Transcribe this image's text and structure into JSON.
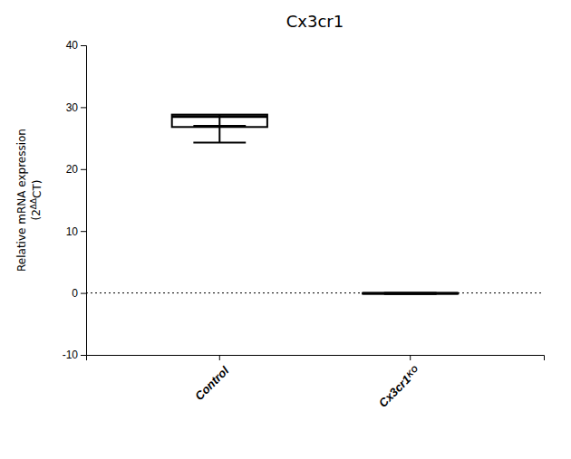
{
  "chart_data": {
    "type": "box",
    "title": "Cx3cr1",
    "y_label": "Relative mRNA expression\n(2ΔΔCT)",
    "categories": [
      "Control",
      "Cx3cr1ᴷᴼ"
    ],
    "whisker_low": [
      24.3,
      -0.18
    ],
    "q1": [
      26.8,
      -0.12
    ],
    "median": [
      28.5,
      -0.05
    ],
    "q3": [
      28.8,
      -0.02
    ],
    "whisker_high": [
      27.0,
      0.02
    ],
    "color": "#000000",
    "reference_lines": [
      {
        "y": 0,
        "line_style": "dotted",
        "color": "#000000"
      }
    ],
    "ylim": [
      -10,
      40
    ],
    "yticks": [
      -10,
      0,
      10,
      20,
      30,
      40
    ],
    "grid": false
  }
}
